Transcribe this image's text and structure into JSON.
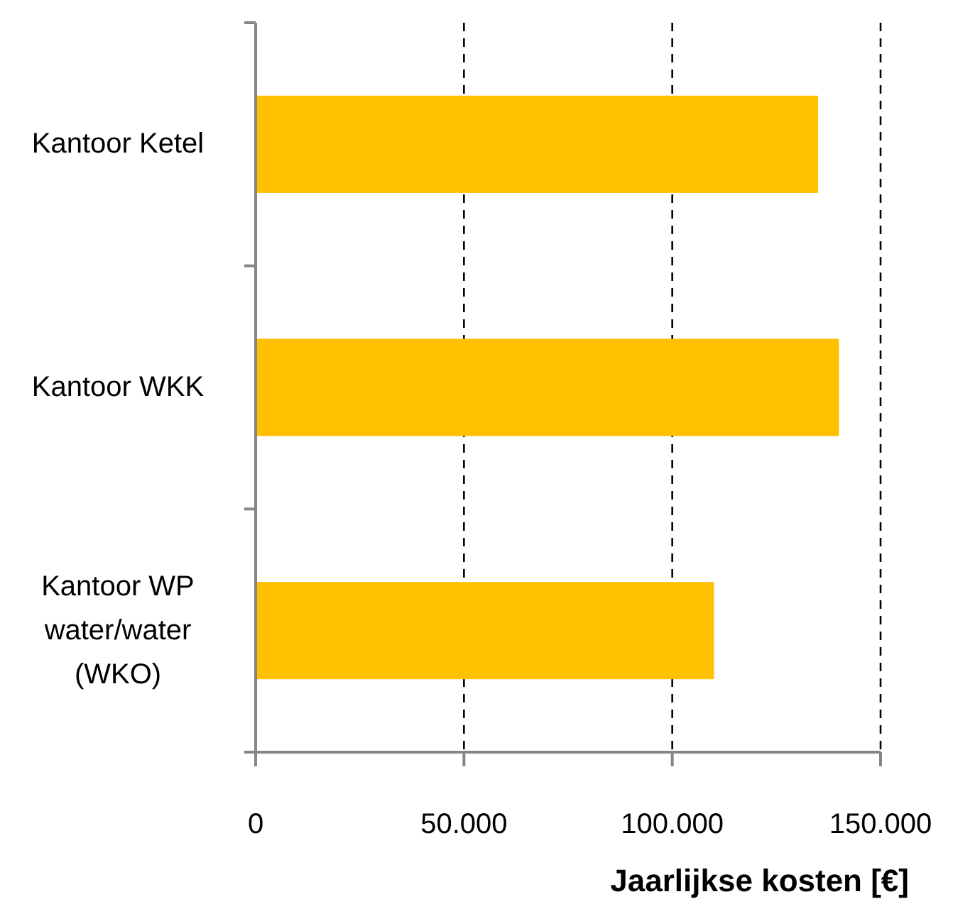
{
  "chart_data": {
    "type": "bar",
    "orientation": "horizontal",
    "categories": [
      "Kantoor Ketel",
      "Kantoor WKK",
      "Kantoor WP water/water (WKO)"
    ],
    "values": [
      135000,
      140000,
      110000
    ],
    "color": "#ffc000",
    "xlabel": "Jaarlijkse kosten [€]",
    "xlim": [
      0,
      150000
    ],
    "xticks": [
      0,
      {
        "value": 50000,
        "label": "50.000"
      },
      {
        "value": 100000,
        "label": "100.000"
      },
      {
        "value": 150000,
        "label": "150.000"
      }
    ],
    "grid": "x"
  }
}
